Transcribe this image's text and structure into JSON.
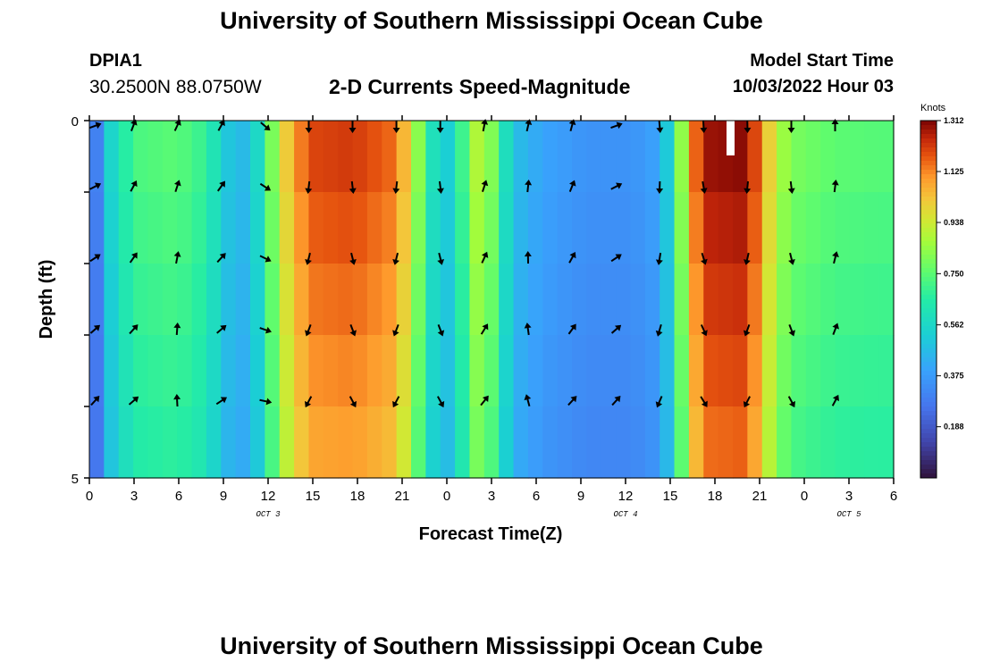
{
  "header": {
    "title": "University of Southern Mississippi Ocean Cube",
    "station_id": "DPIA1",
    "coordinates": "30.2500N  88.0750W",
    "subtitle": "2-D Currents Speed-Magnitude",
    "model_start_label": "Model Start Time",
    "model_start_value": "10/03/2022 Hour 03"
  },
  "footer": {
    "title": "University of Southern Mississippi Ocean Cube"
  },
  "chart_data": {
    "type": "heatmap",
    "title": "2-D Currents Speed-Magnitude",
    "xlabel": "Forecast Time(Z)",
    "ylabel": "Depth (ft)",
    "x_ticks": [
      "0",
      "3",
      "6",
      "9",
      "12",
      "15",
      "18",
      "21",
      "0",
      "3",
      "6",
      "9",
      "12",
      "15",
      "18",
      "21",
      "0",
      "3",
      "6"
    ],
    "day_labels": [
      {
        "label": "OCT 3",
        "tick_index": 4
      },
      {
        "label": "OCT 4",
        "tick_index": 12
      },
      {
        "label": "OCT 5",
        "tick_index": 17
      }
    ],
    "y_ticks": [
      "0",
      "5"
    ],
    "ylim": [
      0,
      5
    ],
    "depth_levels": 5,
    "hours": 55,
    "colorbar": {
      "unit": "Knots",
      "min": 0.0,
      "max": 1.312,
      "labels": [
        "1.312",
        "1.125",
        "0.938",
        "0.750",
        "0.562",
        "0.375",
        "0.188"
      ],
      "values": [
        1.312,
        1.125,
        0.938,
        0.75,
        0.562,
        0.375,
        0.188
      ]
    },
    "speed_profile": [
      [
        0,
        0.1
      ],
      [
        1,
        0.5
      ],
      [
        2,
        0.6
      ],
      [
        3,
        0.72
      ],
      [
        6,
        0.75
      ],
      [
        8,
        0.68
      ],
      [
        9,
        0.55
      ],
      [
        10,
        0.45
      ],
      [
        11,
        0.48
      ],
      [
        12,
        0.65
      ],
      [
        13,
        0.95
      ],
      [
        15,
        1.2
      ],
      [
        18,
        1.22
      ],
      [
        21,
        1.15
      ],
      [
        22,
        0.95
      ],
      [
        23,
        0.7
      ],
      [
        24,
        0.5
      ],
      [
        25,
        0.55
      ],
      [
        26,
        0.85
      ],
      [
        27,
        0.92
      ],
      [
        28,
        0.7
      ],
      [
        29,
        0.48
      ],
      [
        31,
        0.4
      ],
      [
        34,
        0.35
      ],
      [
        37,
        0.35
      ],
      [
        39,
        0.4
      ],
      [
        40,
        0.62
      ],
      [
        41,
        1.05
      ],
      [
        42,
        1.28
      ],
      [
        45,
        1.3
      ],
      [
        46,
        1.1
      ],
      [
        47,
        0.9
      ],
      [
        48,
        0.8
      ],
      [
        51,
        0.75
      ],
      [
        54,
        0.74
      ]
    ],
    "direction_profile": [
      [
        0,
        70
      ],
      [
        2,
        20
      ],
      [
        10,
        30
      ],
      [
        12,
        130
      ],
      [
        13,
        180
      ],
      [
        23,
        180
      ],
      [
        24,
        180
      ],
      [
        26,
        10
      ],
      [
        33,
        15
      ],
      [
        36,
        70
      ],
      [
        38,
        150
      ],
      [
        39,
        175
      ],
      [
        47,
        180
      ],
      [
        48,
        180
      ],
      [
        50,
        0
      ],
      [
        54,
        0
      ]
    ]
  }
}
